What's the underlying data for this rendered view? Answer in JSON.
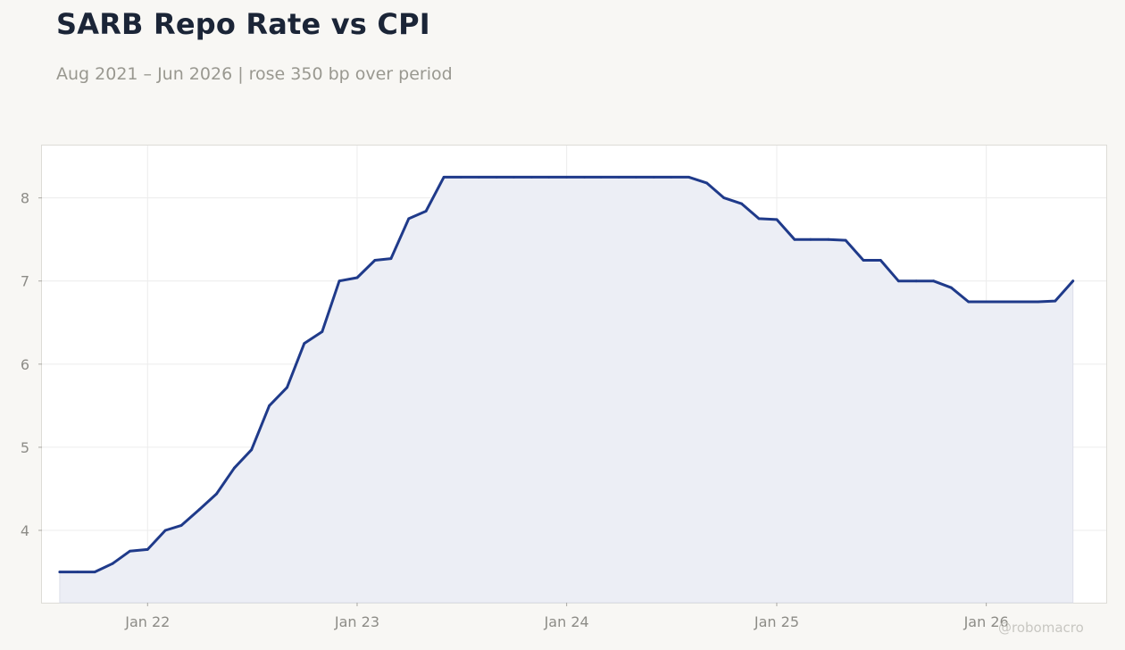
{
  "title": "SARB Repo Rate vs CPI",
  "subtitle": "Aug 2021 – Jun 2026 | rose 350 bp over period",
  "watermark": "@robomacro",
  "colors": {
    "line": "#1f3a8a",
    "fill": "#eceef5",
    "background": "#f8f7f4",
    "plot_background": "#ffffff",
    "grid": "#ececec",
    "tick_text": "#8d8c87"
  },
  "chart_data": {
    "type": "area",
    "xlabel": "",
    "ylabel": "",
    "x_range": [
      "2021-07-01",
      "2026-07-29"
    ],
    "ylim": [
      3.13,
      8.63
    ],
    "grid": true,
    "y_ticks": [
      4,
      5,
      6,
      7,
      8
    ],
    "x_ticks": [
      {
        "date": "2022-01-01",
        "label": "Jan 22"
      },
      {
        "date": "2023-01-01",
        "label": "Jan 23"
      },
      {
        "date": "2024-01-01",
        "label": "Jan 24"
      },
      {
        "date": "2025-01-01",
        "label": "Jan 25"
      },
      {
        "date": "2026-01-01",
        "label": "Jan 26"
      }
    ],
    "series": [
      {
        "x": [
          "2021-08",
          "2021-09",
          "2021-10",
          "2021-11",
          "2021-12",
          "2022-01",
          "2022-02",
          "2022-03",
          "2022-04",
          "2022-05",
          "2022-06",
          "2022-07",
          "2022-08",
          "2022-09",
          "2022-10",
          "2022-11",
          "2022-12",
          "2023-01",
          "2023-02",
          "2023-03",
          "2023-04",
          "2023-05",
          "2023-06",
          "2023-07",
          "2023-08",
          "2023-09",
          "2023-10",
          "2023-11",
          "2023-12",
          "2024-01",
          "2024-02",
          "2024-03",
          "2024-04",
          "2024-05",
          "2024-06",
          "2024-07",
          "2024-08",
          "2024-09",
          "2024-10",
          "2024-11",
          "2024-12",
          "2025-01",
          "2025-02",
          "2025-03",
          "2025-04",
          "2025-05",
          "2025-06",
          "2025-07",
          "2025-08",
          "2025-09",
          "2025-10",
          "2025-11",
          "2025-12",
          "2026-01",
          "2026-02",
          "2026-03",
          "2026-04",
          "2026-05",
          "2026-06"
        ],
        "values": [
          3.5,
          3.5,
          3.5,
          3.6,
          3.75,
          3.77,
          4.0,
          4.06,
          4.25,
          4.44,
          4.75,
          4.97,
          5.5,
          5.72,
          6.25,
          6.39,
          7.0,
          7.04,
          7.25,
          7.27,
          7.75,
          7.84,
          8.25,
          8.25,
          8.25,
          8.25,
          8.25,
          8.25,
          8.25,
          8.25,
          8.25,
          8.25,
          8.25,
          8.25,
          8.25,
          8.25,
          8.25,
          8.18,
          8.0,
          7.93,
          7.75,
          7.74,
          7.5,
          7.5,
          7.5,
          7.49,
          7.25,
          7.25,
          7.0,
          7.0,
          7.0,
          6.92,
          6.75,
          6.75,
          6.75,
          6.75,
          6.75,
          6.76,
          7.0
        ]
      }
    ]
  }
}
